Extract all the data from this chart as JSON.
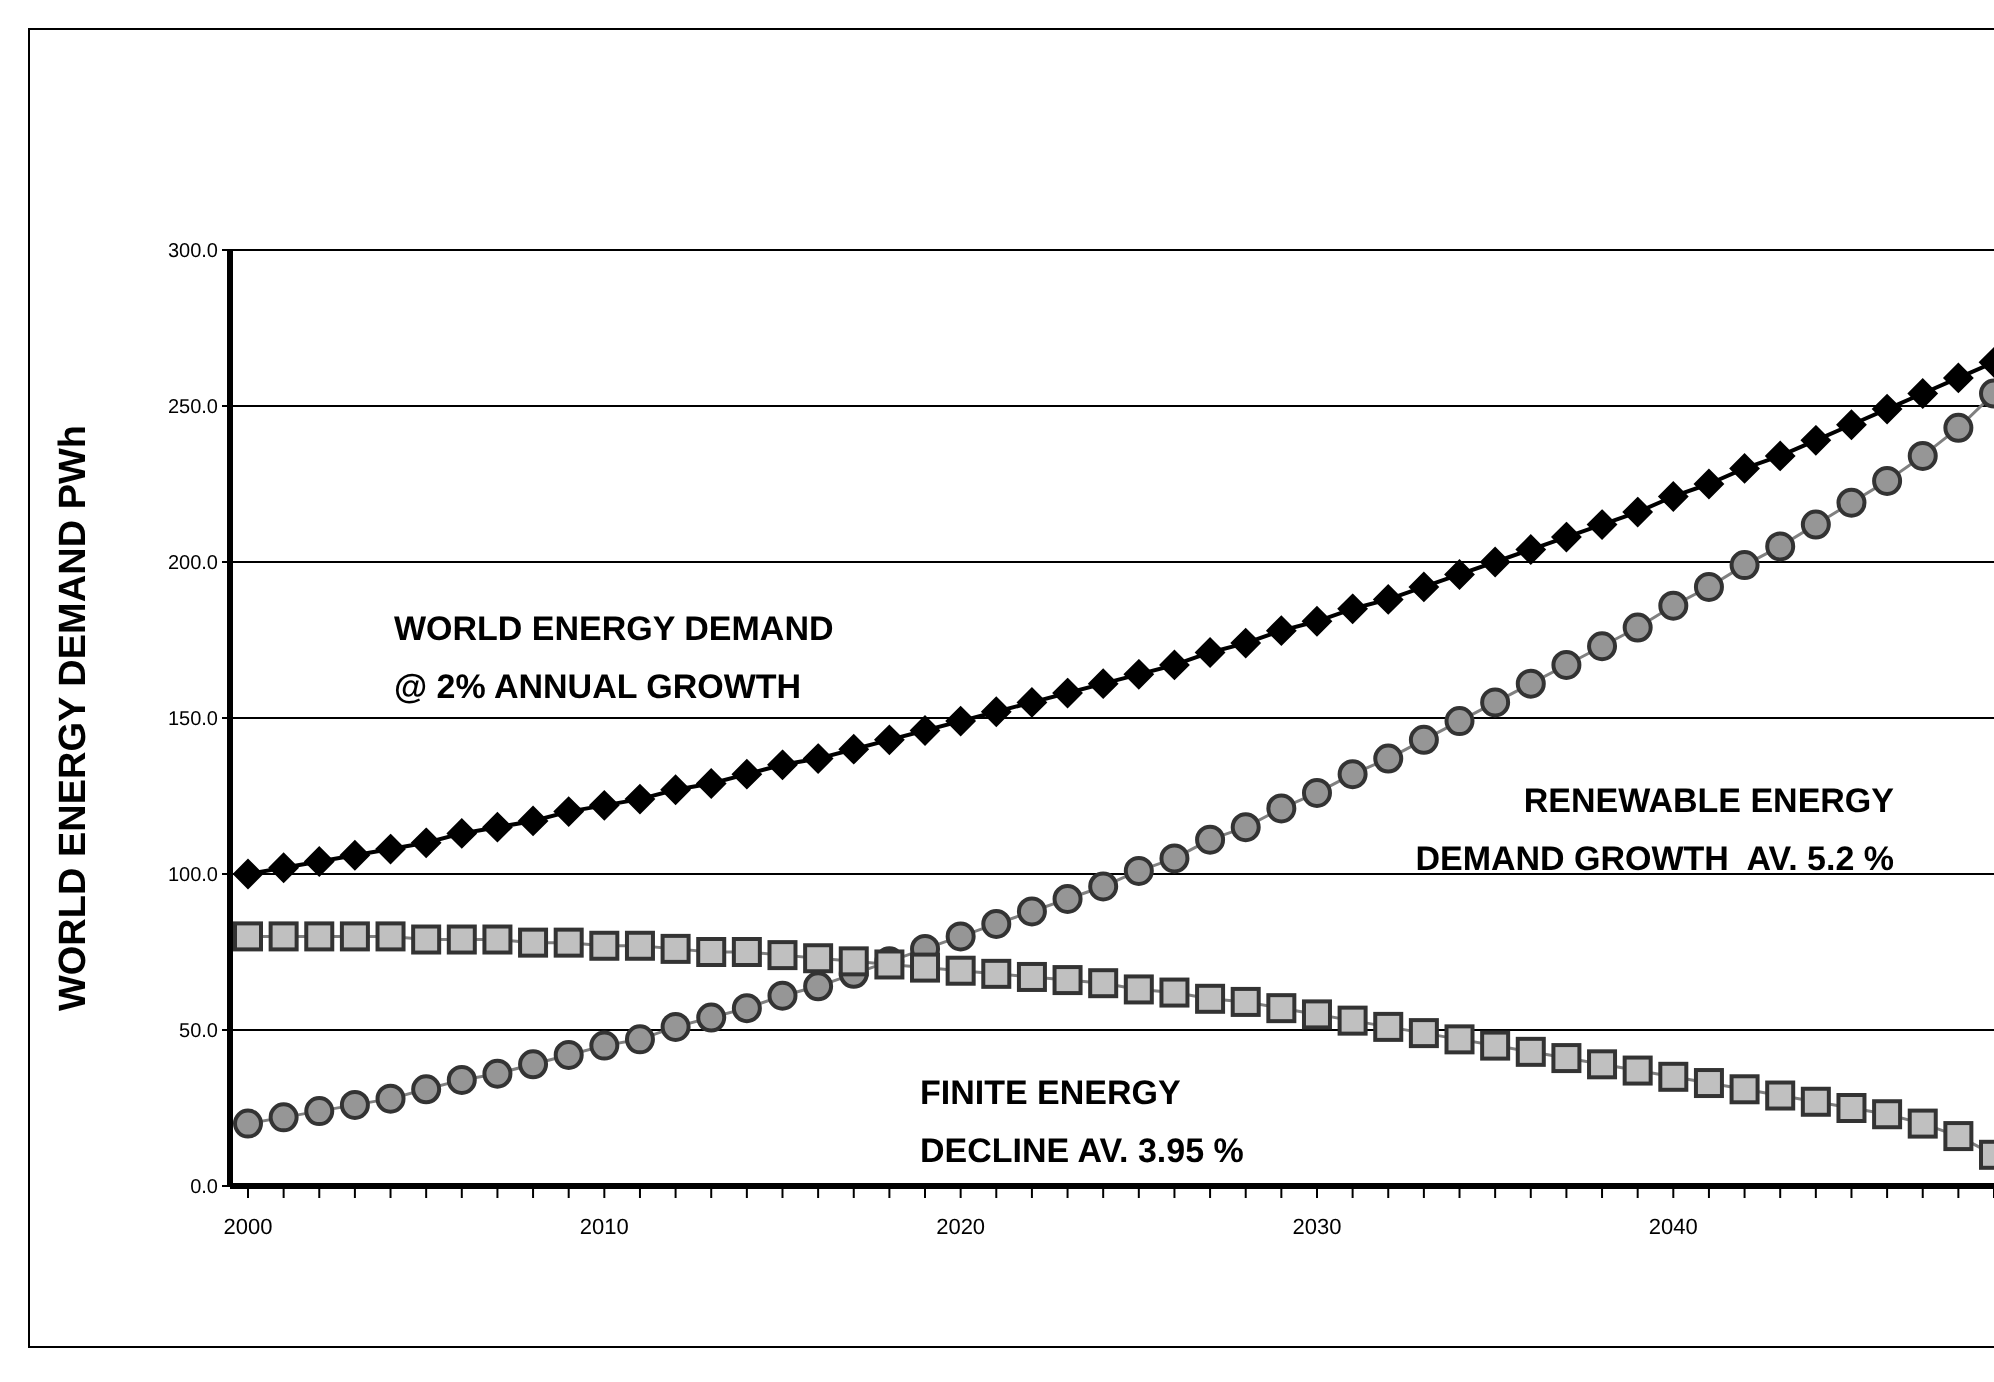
{
  "chart_data": {
    "type": "line",
    "ylabel": "WORLD ENERGY DEMAND PWh",
    "categories": [
      "2000",
      null,
      null,
      null,
      null,
      null,
      null,
      null,
      null,
      null,
      "2010",
      null,
      null,
      null,
      null,
      null,
      null,
      null,
      null,
      null,
      "2020",
      null,
      null,
      null,
      null,
      null,
      null,
      null,
      null,
      null,
      "2030",
      null,
      null,
      null,
      null,
      null,
      null,
      null,
      null,
      null,
      "2040",
      null,
      null,
      null,
      null,
      null,
      null,
      null,
      null,
      null
    ],
    "series": [
      {
        "color": "#000000",
        "marker": "diamond",
        "values": [
          100,
          102,
          104,
          106,
          108,
          110,
          113,
          115,
          117,
          120,
          122,
          124,
          127,
          129,
          132,
          135,
          137,
          140,
          143,
          146,
          149,
          152,
          155,
          158,
          161,
          164,
          167,
          171,
          174,
          178,
          181,
          185,
          188,
          192,
          196,
          200,
          204,
          208,
          212,
          216,
          221,
          225,
          230,
          234,
          239,
          244,
          249,
          254,
          259,
          264
        ]
      },
      {
        "color": "#969696",
        "marker": "circle",
        "values": [
          20,
          22,
          24,
          26,
          28,
          31,
          34,
          36,
          39,
          42,
          45,
          47,
          51,
          54,
          57,
          61,
          64,
          68,
          72,
          76,
          80,
          84,
          88,
          92,
          96,
          101,
          105,
          111,
          115,
          121,
          126,
          132,
          137,
          143,
          149,
          155,
          161,
          167,
          173,
          179,
          186,
          192,
          199,
          205,
          212,
          219,
          226,
          234,
          243,
          254
        ]
      },
      {
        "color": "#c0c0c0",
        "marker": "square",
        "values": [
          80,
          80,
          80,
          80,
          80,
          79,
          79,
          79,
          78,
          78,
          77,
          77,
          76,
          75,
          75,
          74,
          73,
          72,
          71,
          70,
          69,
          68,
          67,
          66,
          65,
          63,
          62,
          60,
          59,
          57,
          55,
          53,
          51,
          49,
          47,
          45,
          43,
          41,
          39,
          37,
          35,
          33,
          31,
          29,
          27,
          25,
          23,
          20,
          16,
          10
        ]
      }
    ],
    "ylim": [
      0,
      300
    ],
    "yticks": [
      {
        "value": 0,
        "label": "0.0"
      },
      {
        "value": 50,
        "label": "50.0"
      },
      {
        "value": 100,
        "label": "100.0"
      },
      {
        "value": 150,
        "label": "150.0"
      },
      {
        "value": 200,
        "label": "200.0"
      },
      {
        "value": 250,
        "label": "250.0"
      },
      {
        "value": 300,
        "label": "300.0"
      }
    ],
    "grid": "y",
    "legend": false,
    "annotations": [
      "WORLD ENERGY DEMAND\n@ 2% ANNUAL GROWTH",
      "RENEWABLE ENERGY\nDEMAND GROWTH  AV. 5.2 %",
      "FINITE ENERGY\nDECLINE AV. 3.95 %"
    ]
  }
}
